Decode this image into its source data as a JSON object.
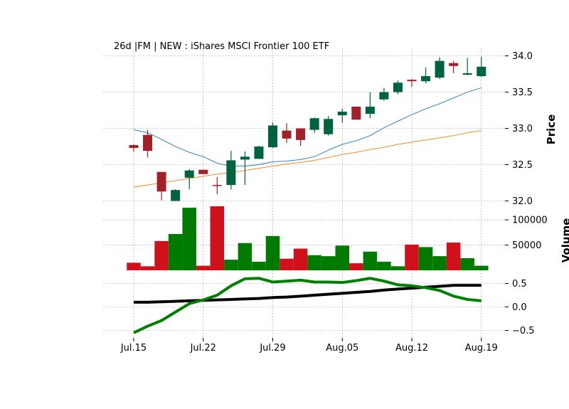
{
  "chart_data": {
    "type": "candlestick",
    "title": "26d |FM | NEW : iShares MSCI Frontier 100 ETF",
    "colors": {
      "up": "#006340",
      "down": "#a02128",
      "vol_up": "#007a00",
      "vol_down": "#d0111b",
      "ma_fast": "#1f77b4",
      "ma_slow": "#ff7f0e",
      "osc_green": "#008000",
      "osc_black": "#000000",
      "grid": "#a0a0a0"
    },
    "grid": true,
    "price_panel": {
      "ylabel": "Price",
      "ylim": [
        32.0,
        34.0
      ],
      "ticks": [
        "32.0",
        "32.5",
        "33.0",
        "33.5",
        "34.0"
      ],
      "tick_values": [
        32.0,
        32.5,
        33.0,
        33.5,
        34.0
      ]
    },
    "volume_panel": {
      "ylabel": "Volume",
      "ylim": [
        0,
        130000
      ],
      "ticks": [
        "50000",
        "100000"
      ],
      "tick_values": [
        50000,
        100000
      ]
    },
    "oscillator_panel": {
      "ylim": [
        -0.6,
        0.62
      ],
      "ticks": [
        "−0.5",
        "0.0",
        "0.5"
      ],
      "tick_values": [
        -0.5,
        0.0,
        0.5
      ]
    },
    "x_ticks": [
      {
        "label": "Jul.15",
        "index": 0
      },
      {
        "label": "Jul.22",
        "index": 5
      },
      {
        "label": "Jul.29",
        "index": 10
      },
      {
        "label": "Aug.05",
        "index": 15
      },
      {
        "label": "Aug.12",
        "index": 20
      },
      {
        "label": "Aug.19",
        "index": 25
      }
    ],
    "candles": [
      {
        "o": 32.77,
        "h": 32.78,
        "l": 32.68,
        "c": 32.73
      },
      {
        "o": 32.91,
        "h": 32.98,
        "l": 32.6,
        "c": 32.69
      },
      {
        "o": 32.4,
        "h": 32.4,
        "l": 32.01,
        "c": 32.13
      },
      {
        "o": 32.0,
        "h": 32.16,
        "l": 32.0,
        "c": 32.15
      },
      {
        "o": 32.32,
        "h": 32.44,
        "l": 32.16,
        "c": 32.42
      },
      {
        "o": 32.43,
        "h": 32.43,
        "l": 32.37,
        "c": 32.37
      },
      {
        "o": 32.22,
        "h": 32.33,
        "l": 32.09,
        "c": 32.21
      },
      {
        "o": 32.22,
        "h": 32.69,
        "l": 32.16,
        "c": 32.56
      },
      {
        "o": 32.57,
        "h": 32.68,
        "l": 32.22,
        "c": 32.61
      },
      {
        "o": 32.58,
        "h": 32.76,
        "l": 32.58,
        "c": 32.75
      },
      {
        "o": 32.74,
        "h": 33.08,
        "l": 32.73,
        "c": 33.04
      },
      {
        "o": 32.97,
        "h": 33.07,
        "l": 32.8,
        "c": 32.86
      },
      {
        "o": 33.0,
        "h": 33.0,
        "l": 32.76,
        "c": 32.84
      },
      {
        "o": 32.98,
        "h": 33.15,
        "l": 32.94,
        "c": 33.14
      },
      {
        "o": 32.92,
        "h": 33.17,
        "l": 32.9,
        "c": 33.13
      },
      {
        "o": 33.18,
        "h": 33.27,
        "l": 33.08,
        "c": 33.23
      },
      {
        "o": 33.3,
        "h": 33.3,
        "l": 33.12,
        "c": 33.12
      },
      {
        "o": 33.2,
        "h": 33.5,
        "l": 33.14,
        "c": 33.3
      },
      {
        "o": 33.4,
        "h": 33.56,
        "l": 33.38,
        "c": 33.5
      },
      {
        "o": 33.5,
        "h": 33.66,
        "l": 33.47,
        "c": 33.63
      },
      {
        "o": 33.67,
        "h": 33.68,
        "l": 33.57,
        "c": 33.65
      },
      {
        "o": 33.65,
        "h": 33.84,
        "l": 33.62,
        "c": 33.72
      },
      {
        "o": 33.7,
        "h": 33.98,
        "l": 33.68,
        "c": 33.93
      },
      {
        "o": 33.9,
        "h": 33.93,
        "l": 33.76,
        "c": 33.86
      },
      {
        "o": 33.74,
        "h": 33.97,
        "l": 33.73,
        "c": 33.76
      },
      {
        "o": 33.72,
        "h": 33.99,
        "l": 33.71,
        "c": 33.85
      }
    ],
    "volume": [
      15000,
      8000,
      58000,
      72000,
      124000,
      9000,
      127000,
      21000,
      54000,
      17000,
      68000,
      23000,
      43000,
      30000,
      28000,
      49000,
      14000,
      37000,
      17000,
      8000,
      51000,
      46000,
      28000,
      55000,
      24000,
      9000
    ],
    "ma_fast": [
      32.98,
      32.94,
      32.85,
      32.75,
      32.67,
      32.61,
      32.52,
      32.48,
      32.48,
      32.5,
      32.54,
      32.55,
      32.57,
      32.61,
      32.7,
      32.78,
      32.83,
      32.9,
      33.01,
      33.1,
      33.19,
      33.27,
      33.34,
      33.42,
      33.5,
      33.56
    ],
    "ma_slow": [
      32.19,
      32.22,
      32.25,
      32.28,
      32.31,
      32.34,
      32.37,
      32.39,
      32.42,
      32.45,
      32.48,
      32.51,
      32.53,
      32.56,
      32.6,
      32.64,
      32.67,
      32.71,
      32.74,
      32.78,
      32.81,
      32.84,
      32.87,
      32.9,
      32.94,
      32.97
    ],
    "oscillator_green": [
      -0.55,
      -0.41,
      -0.29,
      -0.11,
      0.07,
      0.15,
      0.25,
      0.45,
      0.6,
      0.61,
      0.53,
      0.55,
      0.57,
      0.53,
      0.53,
      0.52,
      0.56,
      0.61,
      0.55,
      0.47,
      0.45,
      0.41,
      0.35,
      0.23,
      0.16,
      0.13
    ],
    "oscillator_black": [
      0.1,
      0.1,
      0.11,
      0.12,
      0.13,
      0.14,
      0.15,
      0.16,
      0.17,
      0.18,
      0.2,
      0.21,
      0.23,
      0.25,
      0.27,
      0.29,
      0.31,
      0.33,
      0.36,
      0.38,
      0.4,
      0.42,
      0.44,
      0.46,
      0.46,
      0.46
    ]
  }
}
